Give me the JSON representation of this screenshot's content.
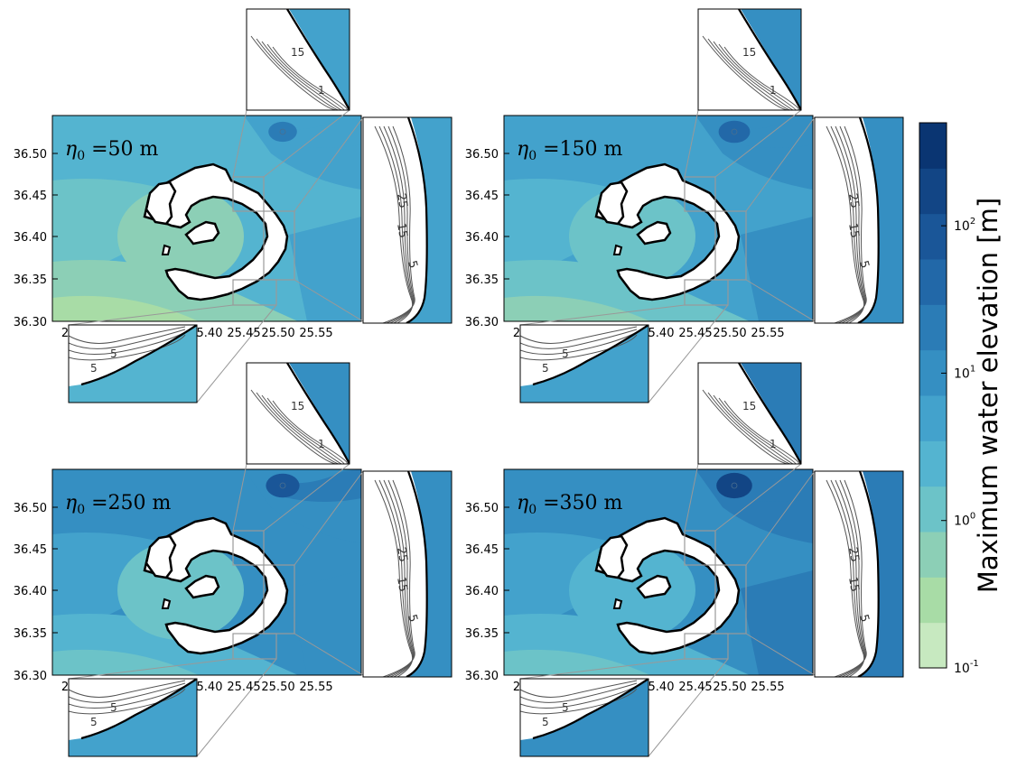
{
  "panels": [
    {
      "label": "$\\eta_0 = 50$ m",
      "eta_text": "η",
      "sub_text": "0",
      "rest_text": " =50 m",
      "level": 0.35
    },
    {
      "label": "$\\eta_0 = 150$ m",
      "eta_text": "η",
      "sub_text": "0",
      "rest_text": " =150 m",
      "level": 0.55
    },
    {
      "label": "$\\eta_0 = 250$ m",
      "eta_text": "η",
      "sub_text": "0",
      "rest_text": " =250 m",
      "level": 0.7
    },
    {
      "label": "$\\eta_0 = 350$ m",
      "eta_text": "η",
      "sub_text": "0",
      "rest_text": " =350 m",
      "level": 0.85
    }
  ],
  "axes": {
    "y_ticks": [
      "36.50",
      "36.45",
      "36.40",
      "36.35",
      "36.30"
    ],
    "x_ticks_visible": [
      "2",
      "5.40",
      "25.45",
      "25.50",
      "25.55"
    ]
  },
  "inset_contours": {
    "east_labels": [
      "25",
      "15",
      "5"
    ],
    "north_labels": [
      "15",
      "1"
    ],
    "south_labels": [
      "5",
      "5"
    ]
  },
  "colorbar": {
    "label": "Maximum water elevation [m]",
    "tick_base": "10",
    "ticks": [
      {
        "exp": "2",
        "value": 100
      },
      {
        "exp": "1",
        "value": 10
      },
      {
        "exp": "0",
        "value": 1
      },
      {
        "exp": "-1",
        "value": 0.1
      }
    ],
    "range": [
      0.1,
      500
    ],
    "colors": [
      "#c7e9c0",
      "#a8dca6",
      "#8ccfb6",
      "#6cc3c8",
      "#54b4d0",
      "#43a2cc",
      "#358fc2",
      "#2b7cb6",
      "#2268a8",
      "#1a5698",
      "#124585",
      "#0a3572"
    ]
  },
  "colors": {
    "land": "#ffffff",
    "coast": "#000000",
    "guide": "#999999",
    "contour": "#555555"
  }
}
